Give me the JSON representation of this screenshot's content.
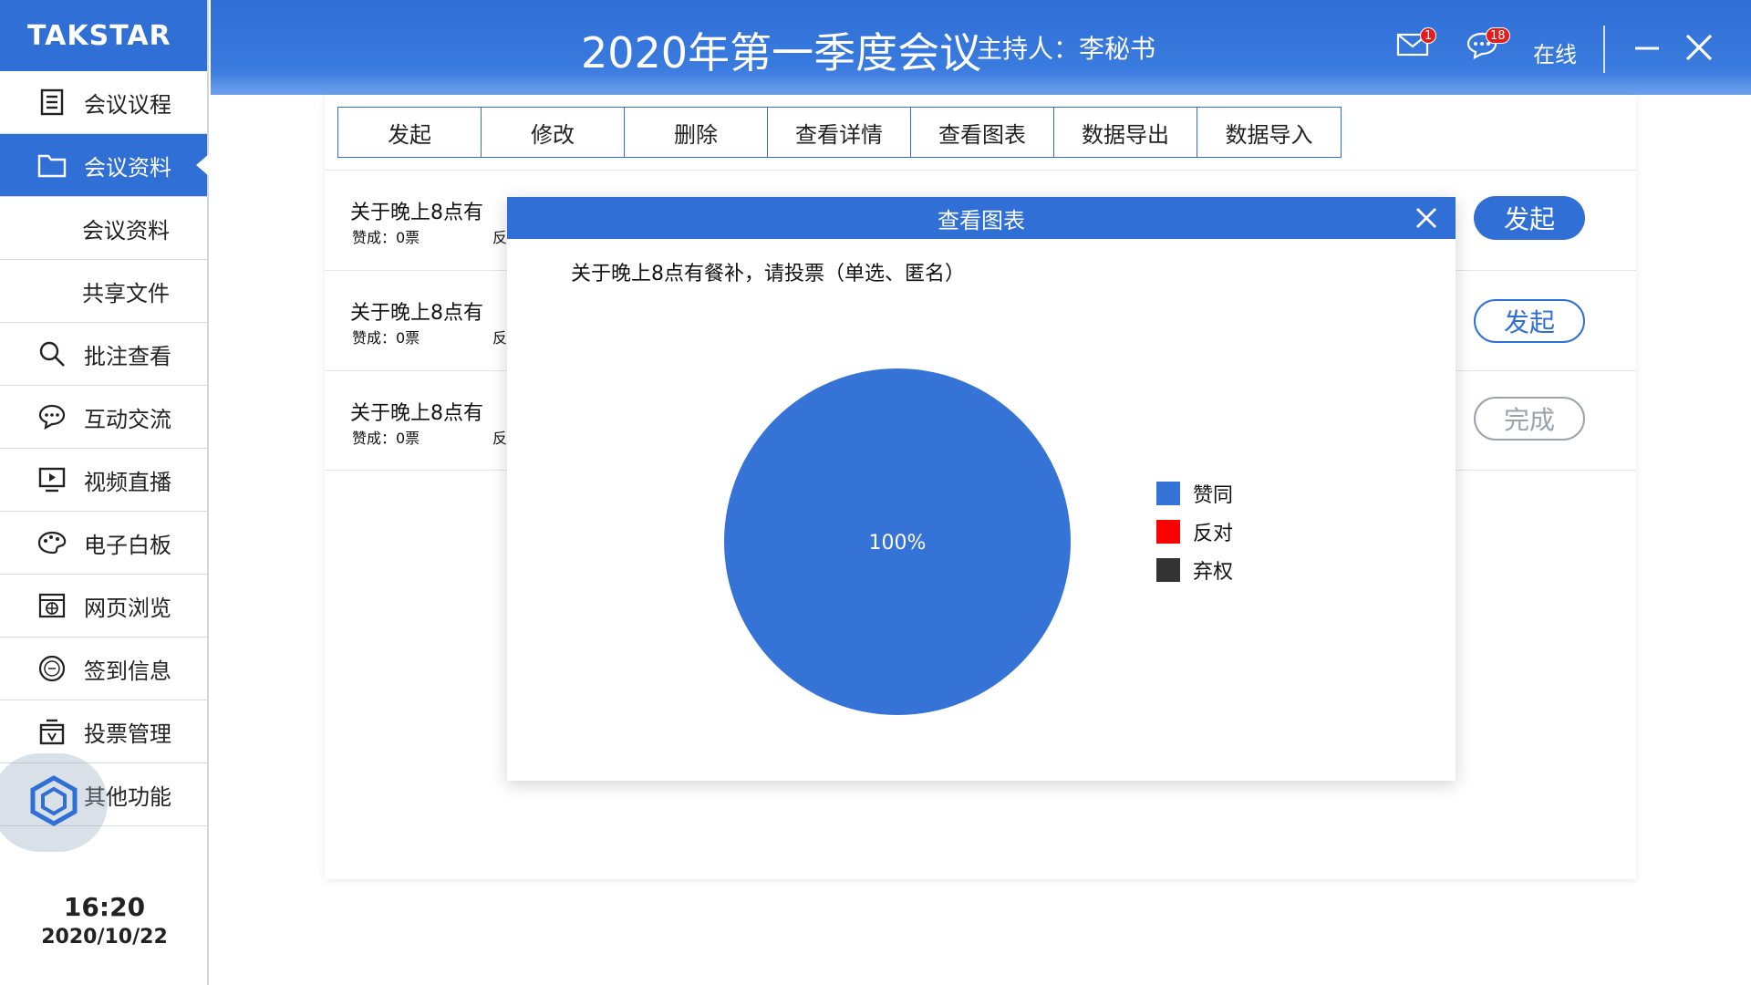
{
  "brand": {
    "logo_text": "TAKSTAR"
  },
  "header": {
    "title": "2020年第一季度会议",
    "host": "主持人：李秘书",
    "mail_badge": "1",
    "chat_badge": "18",
    "status": "在线"
  },
  "sidebar": {
    "items": [
      {
        "label": "会议议程",
        "icon": "agenda-icon"
      },
      {
        "label": "会议资料",
        "icon": "folder-icon"
      },
      {
        "label": "会议资料"
      },
      {
        "label": "共享文件"
      },
      {
        "label": "批注查看",
        "icon": "search-icon"
      },
      {
        "label": "互动交流",
        "icon": "chat-icon"
      },
      {
        "label": "视频直播",
        "icon": "video-icon"
      },
      {
        "label": "电子白板",
        "icon": "palette-icon"
      },
      {
        "label": "网页浏览",
        "icon": "browser-icon"
      },
      {
        "label": "签到信息",
        "icon": "sign-icon"
      },
      {
        "label": "投票管理",
        "icon": "vote-icon"
      },
      {
        "label": "其他功能",
        "icon": "more-icon"
      }
    ],
    "time": "16:20",
    "date": "2020/10/22"
  },
  "toolbar": [
    "发起",
    "修改",
    "删除",
    "查看详情",
    "查看图表",
    "数据导出",
    "数据导入"
  ],
  "rows": [
    {
      "title": "关于晚上8点有",
      "agree": "赞成：0票",
      "oppose": "反",
      "action": "发起"
    },
    {
      "title": "关于晚上8点有",
      "agree": "赞成：0票",
      "oppose": "反",
      "action": "发起"
    },
    {
      "title": "关于晚上8点有",
      "agree": "赞成：0票",
      "oppose": "反",
      "action": "完成"
    }
  ],
  "modal": {
    "title": "查看图表",
    "question": "关于晚上8点有餐补，请投票（单选、匿名）"
  },
  "chart_data": {
    "type": "pie",
    "title": "",
    "categories": [
      "赞同",
      "反对",
      "弃权"
    ],
    "values": [
      100,
      0,
      0
    ],
    "colors": [
      "#3673d6",
      "#ff0000",
      "#333333"
    ],
    "data_labels": [
      "100%"
    ],
    "legend": "right"
  },
  "colors": {
    "primary": "#2f6fd6",
    "done_gray": "#9aa3ad"
  }
}
